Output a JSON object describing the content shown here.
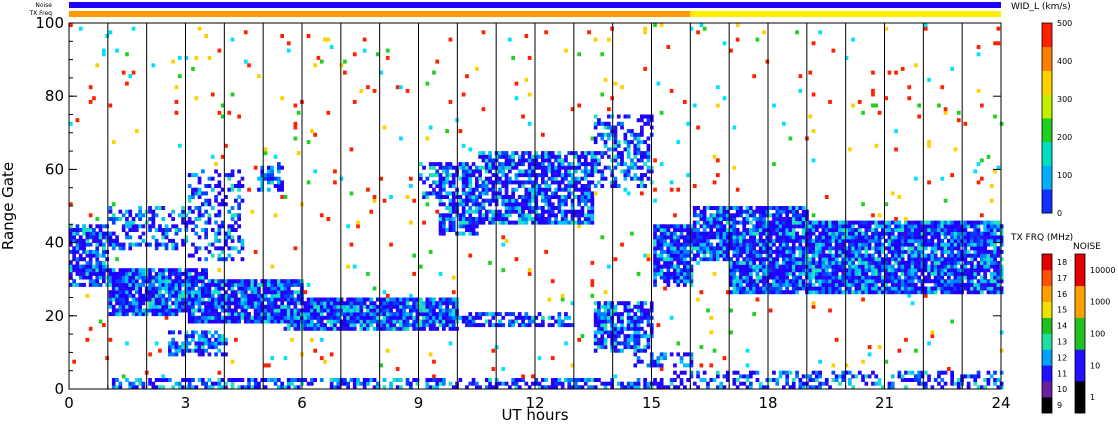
{
  "chart_data": {
    "type": "heatmap",
    "title": "",
    "xlabel": "UT hours",
    "ylabel": "Range Gate",
    "xlim": [
      0,
      24
    ],
    "ylim": [
      0,
      100
    ],
    "x_ticks": [
      "0",
      "3",
      "6",
      "9",
      "12",
      "15",
      "18",
      "21",
      "24"
    ],
    "y_ticks": [
      "0",
      "20",
      "40",
      "60",
      "80",
      "100"
    ],
    "top_bars": [
      {
        "label": "Noise",
        "segments": [
          {
            "from": 0,
            "to": 24,
            "color": "#1f00ff"
          }
        ]
      },
      {
        "label": "TX Freq",
        "segments": [
          {
            "from": 0,
            "to": 16,
            "color": "#ff9900"
          },
          {
            "from": 16,
            "to": 24,
            "color": "#ffee00"
          }
        ]
      }
    ],
    "scan_boundaries": [
      1,
      2,
      3,
      4,
      5,
      6,
      7,
      8,
      9,
      10,
      11,
      12,
      13,
      14,
      15,
      16,
      17,
      18,
      19,
      20,
      21,
      22,
      23
    ],
    "bands": [
      {
        "t0": 0.0,
        "t1": 1.0,
        "g0": 28,
        "g1": 45,
        "density": 0.75
      },
      {
        "t0": 1.0,
        "t1": 3.5,
        "g0": 20,
        "g1": 33,
        "density": 0.9
      },
      {
        "t0": 3.0,
        "t1": 6.0,
        "g0": 18,
        "g1": 30,
        "density": 0.9
      },
      {
        "t0": 5.5,
        "t1": 10.0,
        "g0": 16,
        "g1": 25,
        "density": 0.9
      },
      {
        "t0": 10.0,
        "t1": 13.0,
        "g0": 17,
        "g1": 21,
        "density": 0.6
      },
      {
        "t0": 13.5,
        "t1": 15.0,
        "g0": 10,
        "g1": 24,
        "density": 0.75
      },
      {
        "t0": 14.5,
        "t1": 16.0,
        "g0": 6,
        "g1": 10,
        "density": 0.5
      },
      {
        "t0": 15.5,
        "t1": 24.0,
        "g0": 0,
        "g1": 5,
        "density": 0.45
      },
      {
        "t0": 1.0,
        "t1": 16.0,
        "g0": 0,
        "g1": 3,
        "density": 0.55
      },
      {
        "t0": 9.5,
        "t1": 10.5,
        "g0": 42,
        "g1": 62,
        "density": 0.7
      },
      {
        "t0": 10.5,
        "t1": 13.5,
        "g0": 45,
        "g1": 65,
        "density": 0.75
      },
      {
        "t0": 13.5,
        "t1": 15.0,
        "g0": 55,
        "g1": 75,
        "density": 0.45
      },
      {
        "t0": 15.0,
        "t1": 16.0,
        "g0": 28,
        "g1": 45,
        "density": 0.85
      },
      {
        "t0": 16.0,
        "t1": 19.0,
        "g0": 35,
        "g1": 50,
        "density": 0.85
      },
      {
        "t0": 17.0,
        "t1": 24.0,
        "g0": 26,
        "g1": 46,
        "density": 0.9
      },
      {
        "t0": 1.0,
        "t1": 3.0,
        "g0": 38,
        "g1": 50,
        "density": 0.45
      },
      {
        "t0": 3.0,
        "t1": 4.5,
        "g0": 35,
        "g1": 60,
        "density": 0.4
      },
      {
        "t0": 4.8,
        "t1": 5.5,
        "g0": 54,
        "g1": 62,
        "density": 0.6
      },
      {
        "t0": 2.5,
        "t1": 4.0,
        "g0": 9,
        "g1": 16,
        "density": 0.6
      },
      {
        "t0": 9.0,
        "t1": 9.5,
        "g0": 52,
        "g1": 62,
        "density": 0.5
      }
    ],
    "scatter_density": 0.02,
    "colorbars": [
      {
        "title": "WID_L (km/s)",
        "ticks": [
          "0",
          "100",
          "200",
          "300",
          "400",
          "500"
        ],
        "colors": [
          "#1030ff",
          "#00b0ff",
          "#00e0c0",
          "#20d020",
          "#c0f000",
          "#ffd000",
          "#ff8000",
          "#ff2000"
        ]
      },
      {
        "title": "TX FRQ (MHz)",
        "ticks": [
          "9",
          "10",
          "11",
          "12",
          "13",
          "14",
          "15",
          "16",
          "17",
          "18"
        ],
        "colors": [
          "#000000",
          "#6a1fa0",
          "#2010ff",
          "#00a0ff",
          "#20e0a0",
          "#20c020",
          "#f0e000",
          "#ffa000",
          "#ff5000",
          "#e00000"
        ]
      },
      {
        "title": "NOISE",
        "ticks": [
          "1",
          "10",
          "100",
          "1000",
          "10000"
        ],
        "colors": [
          "#000000",
          "#2010ff",
          "#20c020",
          "#ffa000",
          "#e00000"
        ]
      }
    ]
  }
}
